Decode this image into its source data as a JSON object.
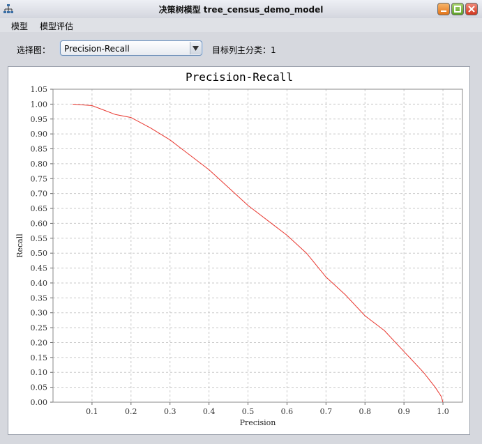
{
  "window": {
    "title": "决策树模型 tree_census_demo_model",
    "icon": "tree-icon",
    "buttons": [
      "minimize-icon",
      "maximize-icon",
      "close-icon"
    ]
  },
  "menu": {
    "items": [
      {
        "label": "模型"
      },
      {
        "label": "模型评估"
      }
    ]
  },
  "controls": {
    "select_label": "选择图：",
    "selected_chart": "Precision-Recall",
    "target_text": "目标列主分类：1"
  },
  "colors": {
    "series": "#e8362e",
    "grid": "#c8c8c8"
  },
  "chart_data": {
    "type": "line",
    "title": "Precision-Recall",
    "xlabel": "Precision",
    "ylabel": "Recall",
    "xlim": [
      0.0,
      1.05
    ],
    "ylim": [
      0.0,
      1.05
    ],
    "x_ticks": [
      "0.1",
      "0.2",
      "0.3",
      "0.4",
      "0.5",
      "0.6",
      "0.7",
      "0.8",
      "0.9",
      "1.0"
    ],
    "y_ticks": [
      "0.00",
      "0.05",
      "0.10",
      "0.15",
      "0.20",
      "0.25",
      "0.30",
      "0.35",
      "0.40",
      "0.45",
      "0.50",
      "0.55",
      "0.60",
      "0.65",
      "0.70",
      "0.75",
      "0.80",
      "0.85",
      "0.90",
      "0.95",
      "1.00",
      "1.05"
    ],
    "grid": true,
    "series": [
      {
        "x": [
          0.05,
          0.1,
          0.13,
          0.16,
          0.2,
          0.25,
          0.3,
          0.35,
          0.4,
          0.45,
          0.5,
          0.55,
          0.6,
          0.65,
          0.7,
          0.75,
          0.8,
          0.85,
          0.9,
          0.95,
          0.98,
          0.995,
          1.0
        ],
        "y": [
          1.0,
          0.995,
          0.98,
          0.965,
          0.955,
          0.92,
          0.88,
          0.83,
          0.78,
          0.72,
          0.66,
          0.61,
          0.56,
          0.5,
          0.42,
          0.36,
          0.29,
          0.24,
          0.17,
          0.1,
          0.05,
          0.02,
          0.0
        ]
      }
    ]
  }
}
